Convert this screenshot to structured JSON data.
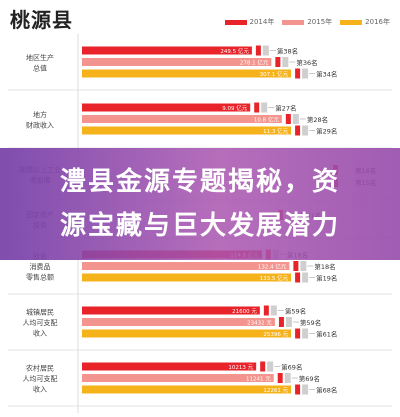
{
  "header": {
    "title": "桃源县"
  },
  "legend": [
    {
      "label": "2014年",
      "color": "#e8232a"
    },
    {
      "label": "2015年",
      "color": "#f3958e"
    },
    {
      "label": "2016年",
      "color": "#f6b21b"
    }
  ],
  "banner": {
    "line1": "澧县金源专题揭秘，资",
    "line2": "源宝藏与巨大发展潜力"
  },
  "chart_data": {
    "type": "bar",
    "orientation": "horizontal",
    "colors": {
      "2014": "#e8232a",
      "2015": "#f3958e",
      "2016": "#f6b21b",
      "rank_marker": "#e8232a"
    },
    "groups": [
      {
        "label_lines": [
          "地区生产",
          "总值"
        ],
        "visible": true,
        "bars": [
          {
            "year": "2014",
            "value": 249.5,
            "value_label": "249.5 亿元",
            "rank": "第38名"
          },
          {
            "year": "2015",
            "value": 278.1,
            "value_label": "278.1 亿元",
            "rank": "第36名"
          },
          {
            "year": "2016",
            "value": 307.1,
            "value_label": "307.1 亿元",
            "rank": "第34名"
          }
        ]
      },
      {
        "label_lines": [
          "地方",
          "财政收入"
        ],
        "visible": true,
        "bars": [
          {
            "year": "2014",
            "value": 9.09,
            "value_label": "9.09 亿元",
            "rank": "第27名"
          },
          {
            "year": "2015",
            "value": 10.8,
            "value_label": "10.8 亿元",
            "rank": "第28名"
          },
          {
            "year": "2016",
            "value": 11.3,
            "value_label": "11.3 亿元",
            "rank": "第29名"
          }
        ]
      },
      {
        "label_lines": [
          "规模以上工业",
          "增加值"
        ],
        "visible": false,
        "bars": [
          {
            "year": "2014",
            "value": 0,
            "value_label": "",
            "rank": "第16名"
          },
          {
            "year": "2015",
            "value": 0,
            "value_label": "",
            "rank": "第15名"
          }
        ]
      },
      {
        "label_lines": [
          "固定资产",
          "投资"
        ],
        "visible": false,
        "bars": [
          {
            "year": "2016",
            "value": 0,
            "value_label": "",
            "rank": "第41名"
          }
        ]
      },
      {
        "label_lines": [
          "社会",
          "消费品",
          "零售总额"
        ],
        "visible": true,
        "bars": [
          {
            "year": "2014",
            "value": 114.8,
            "value_label": "114.8 亿元",
            "rank": "第18名"
          },
          {
            "year": "2015",
            "value": 132.4,
            "value_label": "132.4 亿元",
            "rank": "第18名"
          },
          {
            "year": "2016",
            "value": 133.5,
            "value_label": "133.5 亿元",
            "rank": "第19名"
          }
        ]
      },
      {
        "label_lines": [
          "城镇居民",
          "人均可支配",
          "收入"
        ],
        "visible": true,
        "bars": [
          {
            "year": "2014",
            "value": 21600,
            "value_label": "21600 元",
            "rank": "第59名"
          },
          {
            "year": "2015",
            "value": 23432,
            "value_label": "23432 元",
            "rank": "第59名"
          },
          {
            "year": "2016",
            "value": 25396,
            "value_label": "25396 元",
            "rank": "第61名"
          }
        ]
      },
      {
        "label_lines": [
          "农村居民",
          "人均可支配",
          "收入"
        ],
        "visible": true,
        "bars": [
          {
            "year": "2014",
            "value": 10213,
            "value_label": "10213 元",
            "rank": "第69名"
          },
          {
            "year": "2015",
            "value": 11241,
            "value_label": "11241 元",
            "rank": "第69名"
          },
          {
            "year": "2016",
            "value": 12261,
            "value_label": "12261 元",
            "rank": "第68名"
          }
        ]
      }
    ]
  }
}
